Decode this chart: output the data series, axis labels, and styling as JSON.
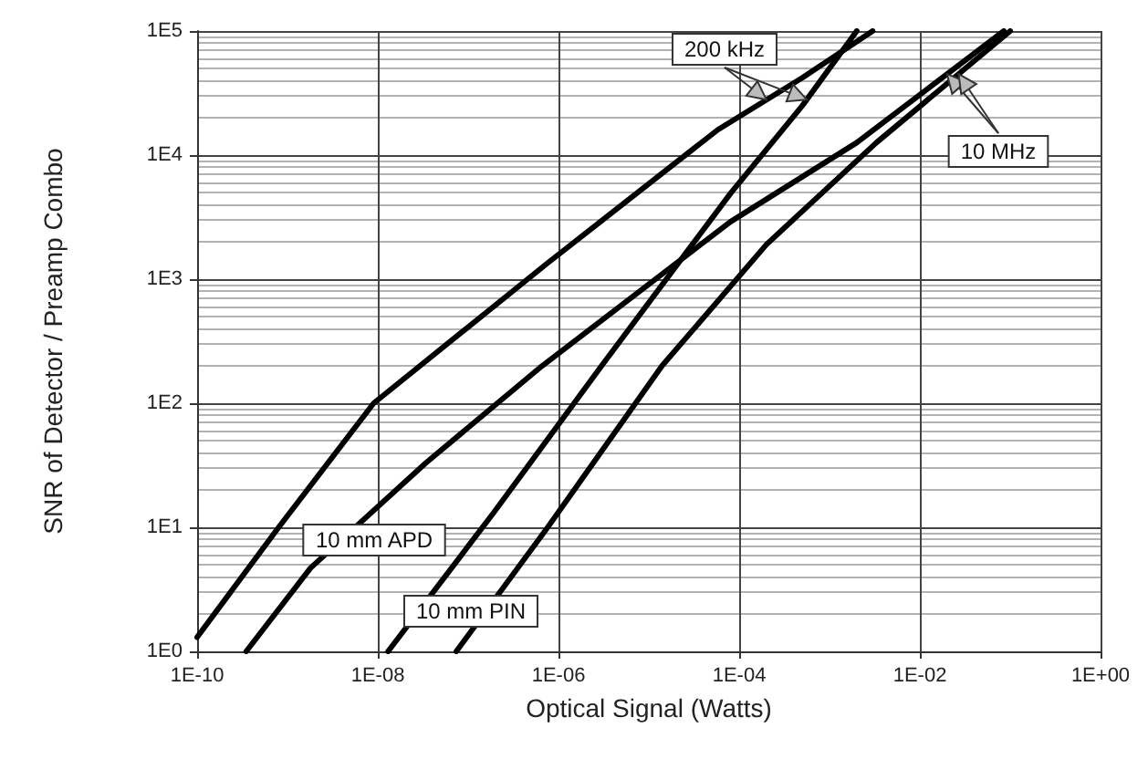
{
  "chart_data": {
    "type": "line",
    "xlabel": "Optical Signal (Watts)",
    "ylabel": "SNR of Detector / Preamp Combo",
    "log": "xy",
    "grid": true,
    "marker": "none",
    "line_style": "solid",
    "xlim": [
      1e-10,
      1
    ],
    "ylim": [
      1,
      100000
    ],
    "xticks": [
      {
        "value": 1e-10,
        "label": "1E-10"
      },
      {
        "value": 1e-08,
        "label": "1E-08"
      },
      {
        "value": 1e-06,
        "label": "1E-06"
      },
      {
        "value": 0.0001,
        "label": "1E-04"
      },
      {
        "value": 0.01,
        "label": "1E-02"
      },
      {
        "value": 1,
        "label": "1E+00"
      }
    ],
    "yticks": [
      {
        "value": 1,
        "label": "1E0"
      },
      {
        "value": 10,
        "label": "1E1"
      },
      {
        "value": 100,
        "label": "1E2"
      },
      {
        "value": 1000,
        "label": "1E3"
      },
      {
        "value": 10000,
        "label": "1E4"
      },
      {
        "value": 100000,
        "label": "1E5"
      }
    ],
    "series": [
      {
        "color": "#000000",
        "x": [
          1e-10,
          8e-10,
          9e-09,
          7.6e-07,
          5.8e-05,
          0.0005,
          0.003
        ],
        "values": [
          1.3,
          10,
          100,
          1350,
          16000,
          42000,
          100000
        ]
      },
      {
        "color": "#000000",
        "x": [
          3.5e-10,
          1.8e-09,
          3.4e-08,
          6.6e-07,
          8e-05,
          0.002,
          0.085
        ],
        "values": [
          1,
          4.7,
          33,
          200,
          2900,
          12600,
          100000
        ]
      },
      {
        "color": "#000000",
        "x": [
          1.3e-08,
          1.9e-07,
          3e-06,
          8e-05,
          0.0005,
          0.002
        ],
        "values": [
          1,
          13,
          200,
          4900,
          25000,
          100000
        ]
      },
      {
        "color": "#000000",
        "x": [
          7.4e-08,
          7.6e-07,
          1.4e-05,
          0.0002,
          0.0033,
          0.1
        ],
        "values": [
          1,
          10,
          200,
          1900,
          12600,
          100000
        ]
      }
    ],
    "annotations": [
      {
        "text": "200 kHz",
        "x": 0.0002,
        "y": 28000
      },
      {
        "text": "10 MHz",
        "x": 0.02,
        "y": 45000
      },
      "10 mm APD",
      "10 mm PIN"
    ]
  }
}
